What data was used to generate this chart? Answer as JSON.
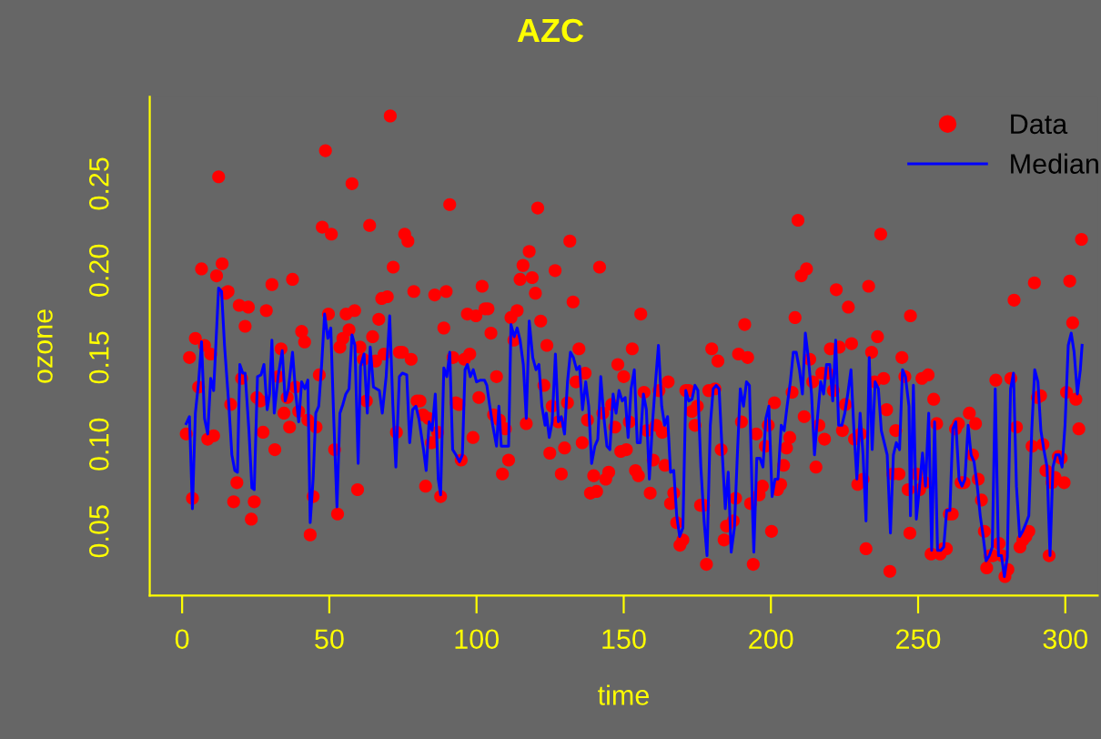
{
  "chart_data": {
    "type": "scatter",
    "title": "AZC",
    "xlabel": "time",
    "ylabel": "ozone",
    "xlim": [
      -11,
      311
    ],
    "ylim": [
      0.013,
      0.3
    ],
    "xticks": [
      0,
      50,
      100,
      150,
      200,
      250,
      300
    ],
    "yticks": [
      0.05,
      {
        "value": 0.1,
        "label": "0.10"
      },
      0.15,
      {
        "value": 0.2,
        "label": "0.20"
      },
      0.25
    ],
    "legend": "top right",
    "series": [
      {
        "name": "Data",
        "marker": "circle",
        "color": "#ff0000",
        "x": [
          1.4,
          2.5,
          3.5,
          4.5,
          5.6,
          6.6,
          7.6,
          8.7,
          9.7,
          10.7,
          11.7,
          12.4,
          13.6,
          14.8,
          15.6,
          16.5,
          17.5,
          18.6,
          19.4,
          20.2,
          21.4,
          22.5,
          23.5,
          24.5,
          25.4,
          26.6,
          27.5,
          28.6,
          30.5,
          31.5,
          32.6,
          33.6,
          34.6,
          35.7,
          36.5,
          37.5,
          38.5,
          39.6,
          40.6,
          41.6,
          42.7,
          43.5,
          44.5,
          45.5,
          46.6,
          47.6,
          48.7,
          49.7,
          50.7,
          51.8,
          52.8,
          53.6,
          54.6,
          55.7,
          56.7,
          57.7,
          58.6,
          59.6,
          60.4,
          61.6,
          62.6,
          63.7,
          64.7,
          65.7,
          66.8,
          67.8,
          68.6,
          69.7,
          70.7,
          71.7,
          72.8,
          73.8,
          74.8,
          75.6,
          76.7,
          77.8,
          78.7,
          79.8,
          80.8,
          81.8,
          82.7,
          83.7,
          84.7,
          85.8,
          86.8,
          87.8,
          88.9,
          89.7,
          90.9,
          92.0,
          93.0,
          94.0,
          94.8,
          95.9,
          96.9,
          97.7,
          98.8,
          99.8,
          100.8,
          101.9,
          102.9,
          103.9,
          104.9,
          105.8,
          106.8,
          107.8,
          108.8,
          109.8,
          110.9,
          111.7,
          112.7,
          113.8,
          114.8,
          115.8,
          116.9,
          117.9,
          118.9,
          120.0,
          120.8,
          121.8,
          122.9,
          123.9,
          124.9,
          125.7,
          126.7,
          127.8,
          128.8,
          129.9,
          130.9,
          131.7,
          132.8,
          133.8,
          134.8,
          135.9,
          136.9,
          137.7,
          138.7,
          139.8,
          140.8,
          141.8,
          142.9,
          143.9,
          144.9,
          145.9,
          147.0,
          148.0,
          149.0,
          150.0,
          150.9,
          151.9,
          152.9,
          154.0,
          155.0,
          155.8,
          156.9,
          157.9,
          159.0,
          160.0,
          161.0,
          162.0,
          163.1,
          164.0,
          165.1,
          165.9,
          167.0,
          168.0,
          169.1,
          170.1,
          171.1,
          172.1,
          173.2,
          174.2,
          175.0,
          176.1,
          177.1,
          178.1,
          178.9,
          179.9,
          181.0,
          182.0,
          183.1,
          184.1,
          184.9,
          187.2,
          188.0,
          189.0,
          190.0,
          191.1,
          192.1,
          193.1,
          194.0,
          195.0,
          196.0,
          197.1,
          198.1,
          199.1,
          200.2,
          201.2,
          202.2,
          203.3,
          204.3,
          205.3,
          206.4,
          207.2,
          208.2,
          209.2,
          210.3,
          211.3,
          212.1,
          213.2,
          214.2,
          215.3,
          216.3,
          217.3,
          218.2,
          219.2,
          220.2,
          221.2,
          222.2,
          223.2,
          224.3,
          225.3,
          226.3,
          227.4,
          228.4,
          229.5,
          230.5,
          231.3,
          232.3,
          233.2,
          234.2,
          235.2,
          236.2,
          237.3,
          238.3,
          239.3,
          240.4,
          241.4,
          242.4,
          243.5,
          244.5,
          245.5,
          246.6,
          247.2,
          247.4,
          249.4,
          250.5,
          251.3,
          252.3,
          253.4,
          254.4,
          255.3,
          256.3,
          257.5,
          258.6,
          259.6,
          260.6,
          261.6,
          262.7,
          263.7,
          264.6,
          265.6,
          267.4,
          268.5,
          269.5,
          270.4,
          271.5,
          272.5,
          273.3,
          274.4,
          275.4,
          276.4,
          277.5,
          278.5,
          279.5,
          280.5,
          281.5,
          282.6,
          283.4,
          284.6,
          285.6,
          286.6,
          287.6,
          288.7,
          289.5,
          290.5,
          291.6,
          292.4,
          293.4,
          294.5,
          295.5,
          296.5,
          297.6,
          298.6,
          299.6,
          300.4,
          301.5,
          302.5,
          303.6,
          304.6,
          305.5
        ],
        "values": [
          0.106,
          0.15,
          0.069,
          0.161,
          0.133,
          0.201,
          0.157,
          0.103,
          0.152,
          0.105,
          0.197,
          0.254,
          0.204,
          0.187,
          0.188,
          0.123,
          0.067,
          0.078,
          0.18,
          0.138,
          0.168,
          0.179,
          0.057,
          0.067,
          0.127,
          0.125,
          0.107,
          0.177,
          0.192,
          0.097,
          0.139,
          0.155,
          0.118,
          0.127,
          0.11,
          0.195,
          0.133,
          0.119,
          0.165,
          0.159,
          0.114,
          0.048,
          0.07,
          0.11,
          0.14,
          0.225,
          0.269,
          0.175,
          0.221,
          0.097,
          0.06,
          0.156,
          0.161,
          0.175,
          0.166,
          0.25,
          0.177,
          0.074,
          0.156,
          0.149,
          0.125,
          0.226,
          0.162,
          0.148,
          0.172,
          0.184,
          0.152,
          0.185,
          0.289,
          0.202,
          0.107,
          0.153,
          0.153,
          0.221,
          0.217,
          0.149,
          0.188,
          0.125,
          0.125,
          0.117,
          0.076,
          0.115,
          0.101,
          0.186,
          0.107,
          0.07,
          0.167,
          0.188,
          0.238,
          0.15,
          0.124,
          0.123,
          0.091,
          0.149,
          0.175,
          0.152,
          0.104,
          0.174,
          0.127,
          0.191,
          0.178,
          0.178,
          0.164,
          0.117,
          0.139,
          0.114,
          0.083,
          0.109,
          0.091,
          0.173,
          0.16,
          0.177,
          0.195,
          0.203,
          0.112,
          0.211,
          0.196,
          0.187,
          0.236,
          0.171,
          0.134,
          0.157,
          0.095,
          0.122,
          0.2,
          0.113,
          0.083,
          0.098,
          0.124,
          0.217,
          0.182,
          0.136,
          0.155,
          0.101,
          0.141,
          0.114,
          0.072,
          0.082,
          0.073,
          0.202,
          0.118,
          0.08,
          0.084,
          0.123,
          0.11,
          0.146,
          0.096,
          0.139,
          0.097,
          0.113,
          0.155,
          0.085,
          0.082,
          0.175,
          0.13,
          0.108,
          0.072,
          0.091,
          0.111,
          0.131,
          0.107,
          0.088,
          0.136,
          0.066,
          0.072,
          0.055,
          0.042,
          0.045,
          0.131,
          0.131,
          0.119,
          0.111,
          0.122,
          0.065,
          0.065,
          0.031,
          0.131,
          0.155,
          0.132,
          0.148,
          0.097,
          0.045,
          0.053,
          0.056,
          0.069,
          0.152,
          0.113,
          0.169,
          0.15,
          0.066,
          0.031,
          0.106,
          0.071,
          0.076,
          0.099,
          0.111,
          0.05,
          0.124,
          0.074,
          0.077,
          0.088,
          0.098,
          0.104,
          0.13,
          0.173,
          0.229,
          0.197,
          0.116,
          0.201,
          0.149,
          0.136,
          0.087,
          0.111,
          0.141,
          0.103,
          0.141,
          0.155,
          0.131,
          0.189,
          0.156,
          0.108,
          0.123,
          0.179,
          0.158,
          0.103,
          0.077,
          0.106,
          0.08,
          0.04,
          0.191,
          0.153,
          0.136,
          0.162,
          0.221,
          0.138,
          0.12,
          0.027,
          0.083,
          0.108,
          0.083,
          0.15,
          0.139,
          0.074,
          0.049,
          0.174,
          0.083,
          0.074,
          0.138,
          0.078,
          0.14,
          0.037,
          0.126,
          0.112,
          0.037,
          0.04,
          0.04,
          0.06,
          0.06,
          0.109,
          0.112,
          0.078,
          0.078,
          0.118,
          0.094,
          0.112,
          0.08,
          0.068,
          0.05,
          0.029,
          0.036,
          0.036,
          0.137,
          0.043,
          0.036,
          0.024,
          0.028,
          0.138,
          0.183,
          0.11,
          0.041,
          0.045,
          0.047,
          0.05,
          0.099,
          0.193,
          0.127,
          0.128,
          0.1,
          0.085,
          0.036,
          0.078,
          0.081,
          0.093,
          0.092,
          0.078,
          0.13,
          0.194,
          0.17,
          0.126,
          0.109,
          0.218
        ]
      },
      {
        "name": "Median",
        "type": "line",
        "marker": "none",
        "line_style": "solid",
        "color": "#0000ff",
        "x": [
          1.4,
          2.5,
          3.5,
          4.5,
          5.6,
          6.6,
          7.6,
          8.7,
          9.7,
          10.7,
          12.4,
          13.4,
          14.4,
          15.9,
          16.9,
          17.9,
          18.8,
          19.6,
          20.6,
          21.4,
          22.7,
          23.7,
          24.5,
          25.6,
          26.8,
          27.8,
          28.9,
          29.7,
          30.5,
          31.3,
          32.6,
          34.0,
          35.0,
          36.1,
          37.5,
          38.6,
          39.6,
          40.6,
          41.7,
          42.7,
          43.5,
          44.5,
          45.4,
          46.4,
          47.4,
          48.4,
          49.5,
          50.5,
          51.5,
          52.6,
          53.6,
          54.6,
          55.6,
          56.7,
          57.7,
          58.7,
          59.8,
          60.6,
          61.8,
          62.9,
          63.9,
          65.0,
          67.0,
          68.0,
          69.3,
          70.5,
          71.6,
          72.6,
          73.8,
          74.8,
          76.3,
          77.3,
          78.3,
          79.4,
          80.4,
          82.0,
          82.9,
          83.9,
          84.9,
          86.0,
          87.0,
          87.8,
          88.9,
          89.9,
          90.9,
          91.9,
          93.0,
          94.2,
          95.2,
          96.1,
          96.9,
          97.9,
          98.9,
          100.0,
          101.4,
          102.7,
          103.5,
          104.5,
          105.5,
          106.8,
          107.6,
          108.4,
          110.9,
          111.7,
          112.8,
          113.8,
          114.8,
          115.9,
          116.9,
          117.9,
          119.1,
          120.2,
          121.2,
          122.2,
          123.3,
          123.7,
          124.7,
          125.7,
          126.8,
          127.8,
          128.8,
          129.9,
          130.9,
          131.9,
          132.9,
          134.0,
          135.0,
          136.0,
          137.1,
          138.1,
          139.1,
          140.2,
          141.2,
          142.2,
          143.3,
          144.3,
          145.3,
          146.4,
          147.4,
          148.4,
          149.5,
          150.5,
          151.5,
          152.5,
          153.6,
          154.6,
          155.6,
          156.7,
          157.7,
          158.7,
          159.8,
          160.8,
          161.8,
          162.9,
          163.9,
          164.9,
          165.9,
          167.0,
          168.0,
          169.0,
          170.1,
          171.1,
          172.1,
          173.2,
          174.2,
          175.2,
          176.2,
          177.3,
          178.3,
          179.4,
          180.4,
          181.4,
          182.4,
          183.5,
          184.5,
          185.5,
          186.5,
          187.6,
          188.6,
          189.6,
          190.7,
          191.7,
          192.7,
          193.8,
          194.2,
          195.2,
          196.3,
          197.3,
          198.3,
          199.3,
          200.4,
          201.4,
          202.4,
          203.5,
          204.5,
          205.5,
          206.6,
          207.6,
          208.6,
          209.7,
          210.7,
          211.7,
          212.7,
          213.8,
          214.8,
          215.8,
          216.9,
          217.9,
          218.9,
          220.0,
          221.0,
          222.0,
          223.0,
          224.1,
          225.1,
          226.1,
          227.2,
          228.2,
          229.2,
          230.3,
          231.3,
          232.3,
          233.4,
          234.4,
          235.4,
          236.5,
          237.5,
          238.5,
          239.5,
          240.6,
          241.6,
          242.6,
          243.7,
          244.7,
          245.7,
          246.9,
          247.4,
          248.4,
          249.4,
          250.5,
          251.5,
          252.5,
          253.6,
          254.6,
          255.6,
          256.6,
          257.7,
          258.7,
          259.7,
          260.8,
          261.8,
          262.8,
          263.9,
          264.9,
          265.9,
          267.0,
          268.0,
          269.0,
          270.1,
          271.1,
          272.1,
          273.1,
          274.2,
          275.2,
          276.2,
          277.3,
          278.3,
          279.3,
          280.3,
          281.4,
          282.4,
          283.4,
          284.5,
          285.5,
          286.5,
          287.6,
          288.6,
          289.6,
          290.7,
          291.7,
          292.7,
          293.8,
          294.8,
          295.8,
          296.8,
          297.9,
          298.9,
          299.9,
          301.0,
          302.0,
          303.0,
          304.1,
          305.1,
          305.7
        ],
        "values": [
          0.112,
          0.116,
          0.063,
          0.118,
          0.136,
          0.159,
          0.115,
          0.106,
          0.138,
          0.131,
          0.19,
          0.188,
          0.157,
          0.122,
          0.094,
          0.085,
          0.084,
          0.146,
          0.141,
          0.141,
          0.108,
          0.075,
          0.074,
          0.139,
          0.14,
          0.146,
          0.12,
          0.129,
          0.16,
          0.118,
          0.139,
          0.154,
          0.125,
          0.132,
          0.153,
          0.129,
          0.113,
          0.136,
          0.132,
          0.137,
          0.055,
          0.08,
          0.118,
          0.122,
          0.146,
          0.175,
          0.161,
          0.167,
          0.115,
          0.064,
          0.118,
          0.123,
          0.129,
          0.132,
          0.163,
          0.157,
          0.089,
          0.145,
          0.152,
          0.118,
          0.156,
          0.133,
          0.131,
          0.118,
          0.139,
          0.174,
          0.122,
          0.087,
          0.139,
          0.141,
          0.14,
          0.101,
          0.12,
          0.122,
          0.115,
          0.097,
          0.085,
          0.113,
          0.108,
          0.129,
          0.08,
          0.071,
          0.144,
          0.139,
          0.153,
          0.097,
          0.094,
          0.09,
          0.094,
          0.143,
          0.146,
          0.139,
          0.143,
          0.136,
          0.137,
          0.137,
          0.134,
          0.122,
          0.111,
          0.099,
          0.122,
          0.099,
          0.099,
          0.169,
          0.162,
          0.167,
          0.16,
          0.146,
          0.115,
          0.171,
          0.15,
          0.143,
          0.146,
          0.122,
          0.111,
          0.118,
          0.104,
          0.113,
          0.152,
          0.113,
          0.116,
          0.106,
          0.136,
          0.153,
          0.15,
          0.143,
          0.145,
          0.12,
          0.136,
          0.122,
          0.089,
          0.099,
          0.103,
          0.139,
          0.115,
          0.099,
          0.097,
          0.129,
          0.118,
          0.131,
          0.125,
          0.127,
          0.104,
          0.132,
          0.143,
          0.101,
          0.101,
          0.129,
          0.12,
          0.08,
          0.113,
          0.136,
          0.157,
          0.122,
          0.111,
          0.116,
          0.084,
          0.085,
          0.059,
          0.047,
          0.052,
          0.131,
          0.125,
          0.126,
          0.134,
          0.131,
          0.087,
          0.056,
          0.036,
          0.111,
          0.132,
          0.134,
          0.132,
          0.094,
          0.063,
          0.084,
          0.038,
          0.052,
          0.094,
          0.132,
          0.122,
          0.136,
          0.134,
          0.059,
          0.038,
          0.092,
          0.092,
          0.087,
          0.115,
          0.122,
          0.07,
          0.08,
          0.08,
          0.111,
          0.108,
          0.122,
          0.136,
          0.153,
          0.153,
          0.143,
          0.129,
          0.164,
          0.15,
          0.129,
          0.094,
          0.115,
          0.136,
          0.129,
          0.146,
          0.146,
          0.125,
          0.16,
          0.111,
          0.111,
          0.118,
          0.129,
          0.143,
          0.108,
          0.08,
          0.118,
          0.094,
          0.056,
          0.15,
          0.097,
          0.136,
          0.132,
          0.108,
          0.101,
          0.094,
          0.049,
          0.094,
          0.101,
          0.097,
          0.143,
          0.139,
          0.122,
          0.059,
          0.134,
          0.057,
          0.076,
          0.095,
          0.076,
          0.118,
          0.039,
          0.113,
          0.039,
          0.039,
          0.041,
          0.062,
          0.062,
          0.109,
          0.113,
          0.08,
          0.076,
          0.08,
          0.111,
          0.094,
          0.09,
          0.076,
          0.059,
          0.047,
          0.033,
          0.036,
          0.041,
          0.132,
          0.036,
          0.036,
          0.024,
          0.035,
          0.132,
          0.141,
          0.076,
          0.047,
          0.05,
          0.054,
          0.059,
          0.108,
          0.143,
          0.136,
          0.108,
          0.097,
          0.087,
          0.036,
          0.087,
          0.094,
          0.094,
          0.087,
          0.111,
          0.157,
          0.164,
          0.153,
          0.129,
          0.143,
          0.157
        ]
      }
    ]
  }
}
